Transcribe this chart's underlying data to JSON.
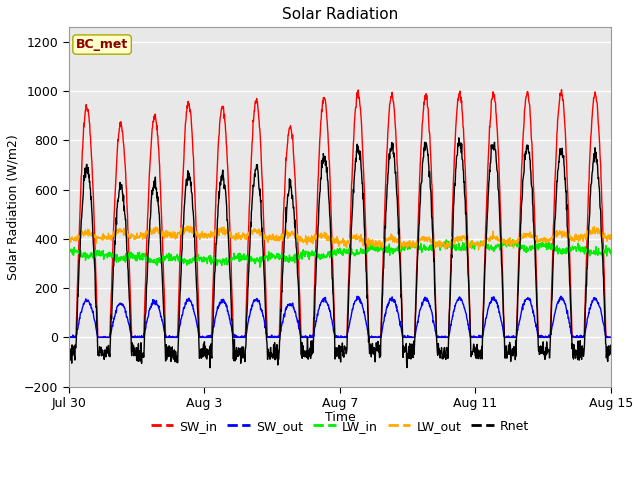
{
  "title": "Solar Radiation",
  "xlabel": "Time",
  "ylabel": "Solar Radiation (W/m2)",
  "ylim": [
    -200,
    1260
  ],
  "yticks": [
    -200,
    0,
    200,
    400,
    600,
    800,
    1000,
    1200
  ],
  "fig_bg_color": "#ffffff",
  "plot_bg_color": "#e8e8e8",
  "n_days": 17,
  "dt_hours": 0.25,
  "sw_in_color": "#ff0000",
  "sw_out_color": "#0000ff",
  "lw_in_color": "#00ee00",
  "lw_out_color": "#ffaa00",
  "rnet_color": "#000000",
  "line_width": 1.0,
  "label_tag": "BC_met",
  "label_tag_color": "#8b0000",
  "label_tag_bg": "#ffffcc",
  "xtick_labels": [
    "Jul 30",
    "Aug 3",
    "Aug 7",
    "Aug 11",
    "Aug 15"
  ],
  "xtick_positions": [
    0,
    4,
    8,
    12,
    16
  ],
  "legend_items": [
    "SW_in",
    "SW_out",
    "LW_in",
    "LW_out",
    "Rnet"
  ],
  "legend_colors": [
    "#ff0000",
    "#0000ff",
    "#00ee00",
    "#ffaa00",
    "#000000"
  ]
}
